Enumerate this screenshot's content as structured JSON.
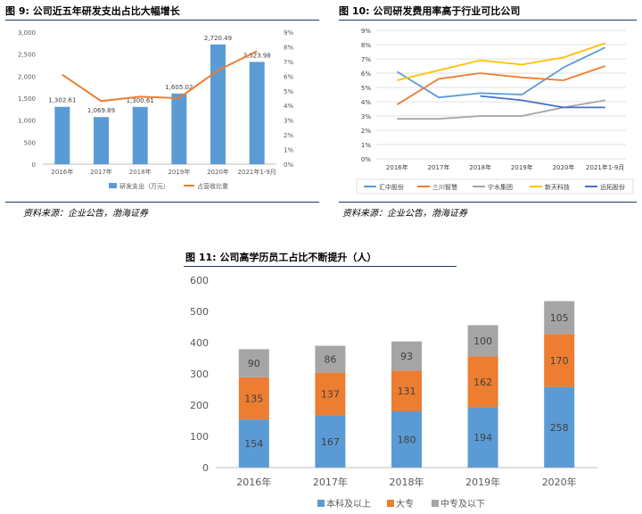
{
  "figures": [
    {
      "label": "图 9:",
      "title": "公司近五年研发支出占比大幅增长"
    },
    {
      "label": "图 10:",
      "title": "公司研发费用率高于行业可比公司"
    },
    {
      "label": "图 11:",
      "title": "公司高学历员工占比不断提升（人）"
    }
  ],
  "sources": [
    "资料来源：企业公告，渤海证券",
    "资料来源：企业公告，渤海证券"
  ],
  "chart_data": [
    {
      "type": "bar",
      "categories": [
        "2016年",
        "2017年",
        "2018年",
        "2019年",
        "2020年",
        "2021年1-9月"
      ],
      "series": [
        {
          "name": "研发支出（万元）",
          "type": "bar",
          "axis": "left",
          "color": "#5b9bd5",
          "values": [
            1302.61,
            1069.89,
            1300.61,
            1605.02,
            2720.49,
            2323.98
          ],
          "labels": [
            "1,302.61",
            "1,069.89",
            "1,300.61",
            "1,605.02",
            "2,720.49",
            "2,323.98"
          ]
        },
        {
          "name": "占营收比重",
          "type": "line",
          "axis": "right",
          "color": "#ed7d31",
          "values": [
            6.1,
            4.3,
            4.6,
            4.5,
            6.4,
            7.7
          ]
        }
      ],
      "ylim": [
        0,
        3000
      ],
      "yticks": [
        "0",
        "500",
        "1,000",
        "1,500",
        "2,000",
        "2,500",
        "3,000"
      ],
      "y2lim": [
        0,
        9
      ],
      "y2ticks": [
        "0%",
        "1%",
        "2%",
        "3%",
        "4%",
        "5%",
        "6%",
        "7%",
        "8%",
        "9%"
      ],
      "legend": "bottom"
    },
    {
      "type": "line",
      "categories": [
        "2016年",
        "2017年",
        "2018年",
        "2019年",
        "2020年",
        "2021年1-9月"
      ],
      "series": [
        {
          "name": "汇中股份",
          "color": "#5b9bd5",
          "values": [
            6.1,
            4.3,
            4.6,
            4.5,
            6.4,
            7.8
          ]
        },
        {
          "name": "三川智慧",
          "color": "#ed7d31",
          "values": [
            3.8,
            5.6,
            6.0,
            5.7,
            5.5,
            6.5
          ]
        },
        {
          "name": "宁水集团",
          "color": "#a5a5a5",
          "values": [
            2.8,
            2.8,
            3.0,
            3.0,
            3.6,
            4.1
          ]
        },
        {
          "name": "新天科技",
          "color": "#ffc000",
          "values": [
            5.5,
            6.2,
            6.9,
            6.6,
            7.1,
            8.1
          ]
        },
        {
          "name": "远拓股份",
          "color": "#4472c4",
          "values": [
            null,
            null,
            4.4,
            4.1,
            3.6,
            3.6
          ]
        }
      ],
      "ylim": [
        0,
        9
      ],
      "yticks": [
        "0%",
        "1%",
        "2%",
        "3%",
        "4%",
        "5%",
        "6%",
        "7%",
        "8%",
        "9%"
      ],
      "grid": true,
      "legend": "bottom"
    },
    {
      "type": "bar",
      "stacked": true,
      "categories": [
        "2016年",
        "2017年",
        "2018年",
        "2019年",
        "2020年"
      ],
      "series": [
        {
          "name": "本科及以上",
          "color": "#5b9bd5",
          "values": [
            154,
            167,
            180,
            194,
            258
          ]
        },
        {
          "name": "大专",
          "color": "#ed7d31",
          "values": [
            135,
            137,
            131,
            162,
            170
          ]
        },
        {
          "name": "中专及以下",
          "color": "#a5a5a5",
          "values": [
            90,
            86,
            93,
            100,
            105
          ]
        }
      ],
      "ylim": [
        0,
        600
      ],
      "yticks": [
        "0",
        "100",
        "200",
        "300",
        "400",
        "500",
        "600"
      ],
      "grid": false,
      "legend": "bottom"
    }
  ]
}
